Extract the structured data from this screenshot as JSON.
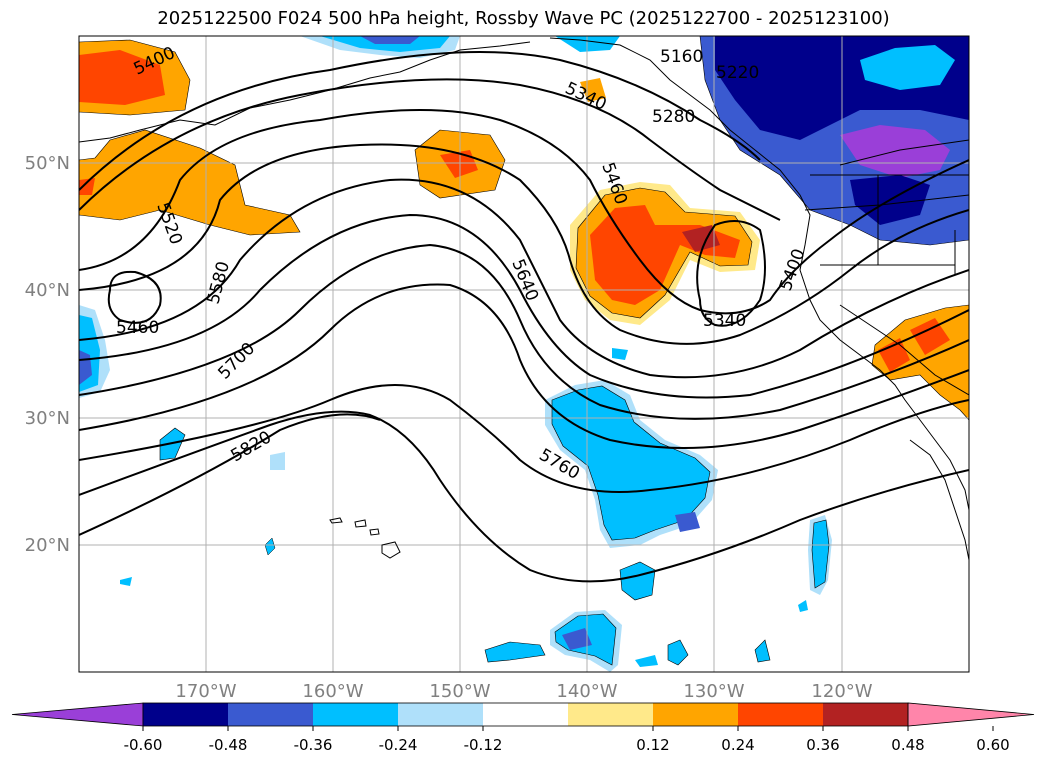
{
  "title": "2025122500 F024 500 hPa height, Rossby Wave PC (2025122700 - 2025123100)",
  "axes": {
    "lon_labels": [
      "170°W",
      "160°W",
      "150°W",
      "140°W",
      "130°W",
      "120°W"
    ],
    "lat_labels": [
      "50°N",
      "40°N",
      "30°N",
      "20°N"
    ]
  },
  "colorbar": {
    "ticks": [
      "-0.60",
      "-0.48",
      "-0.36",
      "-0.24",
      "-0.12",
      "0.12",
      "0.24",
      "0.36",
      "0.48",
      "0.60"
    ],
    "colors": [
      "#9a3fd8",
      "#00008b",
      "#3a5ad0",
      "#00bfff",
      "#afe0fa",
      "#ffffff",
      "#ffe98a",
      "#ffa500",
      "#ff4500",
      "#b22222",
      "#ff85aa"
    ]
  },
  "contour_labels": [
    "5400",
    "5160",
    "5220",
    "5340",
    "5280",
    "5460",
    "5520",
    "5580",
    "5460",
    "5640",
    "5340",
    "5400",
    "5700",
    "5820",
    "5760"
  ]
}
